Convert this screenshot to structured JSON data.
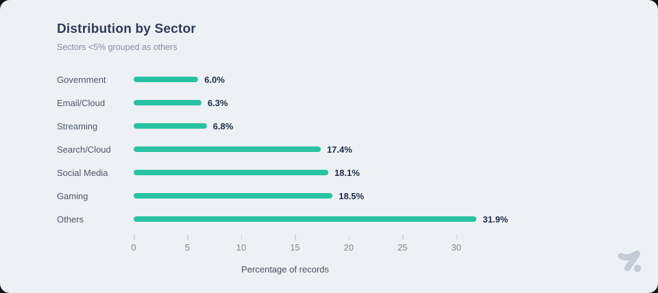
{
  "header": {
    "title": "Distribution by Sector",
    "subtitle": "Sectors <5% grouped as others"
  },
  "chart_data": {
    "type": "bar",
    "orientation": "horizontal",
    "title": "Distribution by Sector",
    "subtitle": "Sectors <5% grouped as others",
    "categories": [
      "Government",
      "Email/Cloud",
      "Streaming",
      "Search/Cloud",
      "Social Media",
      "Gaming",
      "Others"
    ],
    "values": [
      6.0,
      6.3,
      6.8,
      17.4,
      18.1,
      18.5,
      31.9
    ],
    "value_labels": [
      "6.0%",
      "6.3%",
      "6.8%",
      "17.4%",
      "18.1%",
      "18.5%",
      "31.9%"
    ],
    "xlabel": "Percentage of records",
    "ylabel": "",
    "xticks": [
      0,
      5,
      10,
      15,
      20,
      25,
      30
    ],
    "xlim": [
      0,
      32
    ],
    "grid": false,
    "legend": false
  },
  "colors": {
    "bar": "#29c2a2",
    "card_background": "#edf0f5",
    "title_text": "#2e3c58",
    "subtitle_text": "#868fa2",
    "category_text": "#4d586c",
    "value_text": "#1f2c47",
    "tick_text": "#7f8899",
    "logo": "#c4cad6"
  },
  "icons": {
    "brand_logo": "brand-logo-icon"
  }
}
